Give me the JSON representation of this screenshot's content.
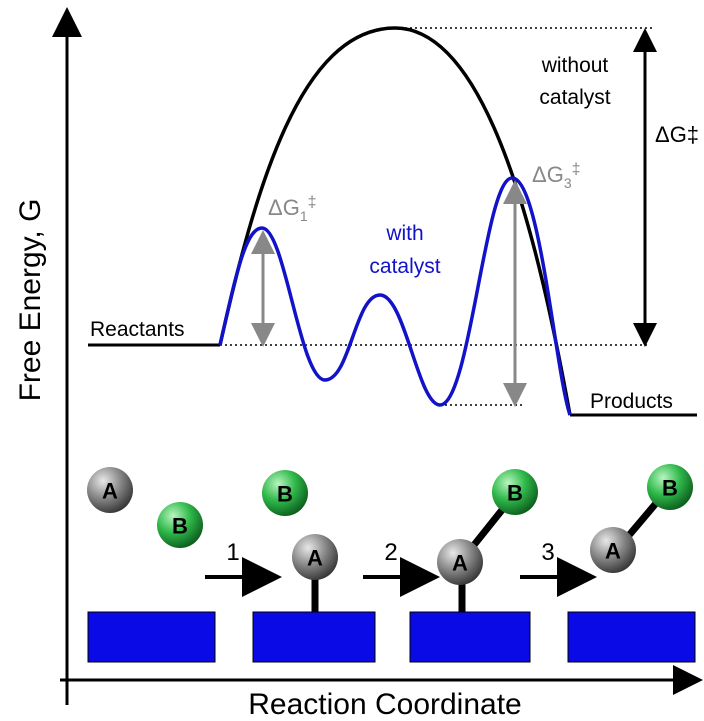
{
  "axes": {
    "y_label": "Free Energy, G",
    "x_label": "Reaction Coordinate"
  },
  "labels": {
    "without_catalyst": [
      "without",
      "catalyst"
    ],
    "with_catalyst": [
      "with",
      "catalyst"
    ],
    "delta_g": "ΔG‡",
    "delta_g1": {
      "base": "ΔG",
      "sub": "1",
      "sup": "‡"
    },
    "delta_g3": {
      "base": "ΔG",
      "sub": "3",
      "sup": "‡"
    },
    "reactants": "Reactants",
    "products": "Products"
  },
  "steps": [
    "1",
    "2",
    "3"
  ],
  "stages": [
    {
      "a": "A",
      "b": "B"
    },
    {
      "a": "A",
      "b": "B"
    },
    {
      "a": "A",
      "b": "B"
    },
    {
      "a": "A",
      "b": "B"
    }
  ]
}
